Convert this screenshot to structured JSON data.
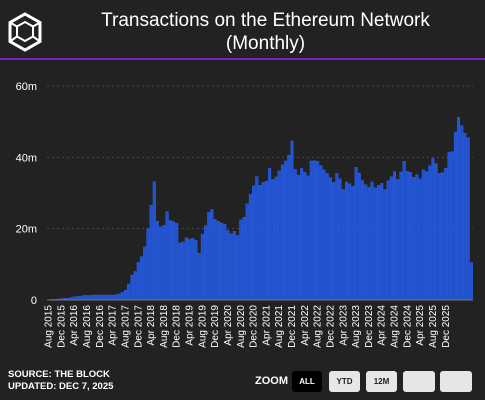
{
  "header": {
    "title": "Transactions on the Ethereum Network\n(Monthly)",
    "logo_icon": "cube-hexagon-logo-icon"
  },
  "footer": {
    "source_line": "SOURCE: THE BLOCK",
    "updated_line": "UPDATED: DEC 7, 2025",
    "zoom_label": "ZOOM",
    "zoom_buttons": [
      "ALL",
      "YTD",
      "12M",
      "",
      ""
    ],
    "active_zoom": "ALL"
  },
  "colors": {
    "background": "#222222",
    "bar": "#1f53d6",
    "bar_edge": "#3a6cf0",
    "accent_line": "#7a1fb8",
    "grid": "#4a4a4a"
  },
  "chart_data": {
    "type": "bar",
    "title": "Transactions on the Ethereum Network (Monthly)",
    "xlabel": "",
    "ylabel": "",
    "ylim": [
      0,
      60000000
    ],
    "yticks": [
      0,
      20000000,
      40000000,
      60000000
    ],
    "ytick_labels": [
      "0",
      "20m",
      "40m",
      "60m"
    ],
    "grid": true,
    "legend": "none",
    "xtick_labels": [
      "Aug 2015",
      "Dec 2015",
      "Apr 2016",
      "Aug 2016",
      "Dec 2016",
      "Apr 2017",
      "Aug 2017",
      "Dec 2017",
      "Apr 2018",
      "Aug 2018",
      "Dec 2018",
      "Apr 2019",
      "Aug 2019",
      "Dec 2019",
      "Apr 2020",
      "Aug 2020",
      "Dec 2020",
      "Apr 2021",
      "Aug 2021",
      "Dec 2021",
      "Apr 2022",
      "Aug 2022",
      "Dec 2022",
      "Apr 2023",
      "Aug 2023",
      "Dec 2023",
      "Apr 2024",
      "Aug 2024",
      "Dec 2024",
      "Apr 2025",
      "Aug 2025",
      "Dec 2025"
    ],
    "x_start": "2015-08",
    "series": [
      {
        "values": [
          0.1,
          0.2,
          0.2,
          0.3,
          0.4,
          0.5,
          0.5,
          0.7,
          0.9,
          1.0,
          1.1,
          1.3,
          1.3,
          1.3,
          1.4,
          1.4,
          1.4,
          1.4,
          1.4,
          1.4,
          1.4,
          1.5,
          1.7,
          2.2,
          2.8,
          4.5,
          7.0,
          8.0,
          10.6,
          12.2,
          14.9,
          20.0,
          26.6,
          33.2,
          22.1,
          20.5,
          21.0,
          24.8,
          22.3,
          22.0,
          21.5,
          16.0,
          16.3,
          17.5,
          17.0,
          17.3,
          16.8,
          13.1,
          18.4,
          20.8,
          24.6,
          25.4,
          22.6,
          22.1,
          21.6,
          21.3,
          19.5,
          18.6,
          19.3,
          18.1,
          22.5,
          23.2,
          27.0,
          29.6,
          32.0,
          34.6,
          32.2,
          33.0,
          33.3,
          37.0,
          33.8,
          34.5,
          36.2,
          37.9,
          39.0,
          40.6,
          44.6,
          36.6,
          35.0,
          36.9,
          35.8,
          34.8,
          39.0,
          39.1,
          38.9,
          37.7,
          36.5,
          35.5,
          34.3,
          33.0,
          35.5,
          34.0,
          31.0,
          33.1,
          32.6,
          31.9,
          37.2,
          35.6,
          33.5,
          32.3,
          31.6,
          33.1,
          31.5,
          32.2,
          32.7,
          31.0,
          33.4,
          34.6,
          36.0,
          33.8,
          35.9,
          38.9,
          36.1,
          35.8,
          34.4,
          35.2,
          34.0,
          36.5,
          36.0,
          37.6,
          39.7,
          38.2,
          35.5,
          35.7,
          37.0,
          41.5,
          41.6,
          47.1,
          51.2,
          48.9,
          46.8,
          45.5,
          10.5
        ]
      }
    ]
  }
}
